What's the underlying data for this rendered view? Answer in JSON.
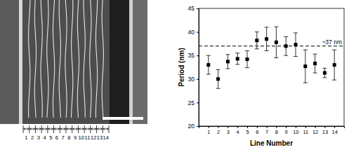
{
  "chart_data": {
    "type": "scatter",
    "x_label": "Line Number",
    "y_label": "Period (nm)",
    "x": [
      1,
      2,
      3,
      4,
      5,
      6,
      7,
      8,
      9,
      10,
      11,
      12,
      13,
      14
    ],
    "values": [
      33.0,
      30.0,
      33.7,
      34.3,
      34.2,
      38.2,
      38.5,
      37.8,
      37.0,
      37.3,
      32.7,
      33.3,
      31.3,
      33.0
    ],
    "errors": [
      2.0,
      2.0,
      1.5,
      1.2,
      1.8,
      1.8,
      2.5,
      3.3,
      2.0,
      2.5,
      3.5,
      2.0,
      1.0,
      3.2
    ],
    "color": "#000000",
    "marker": "square",
    "xlim": [
      0,
      15
    ],
    "xticks": [
      1,
      2,
      3,
      4,
      5,
      6,
      7,
      8,
      9,
      10,
      11,
      12,
      13,
      14
    ],
    "ylim": [
      20,
      45
    ],
    "yticks": [
      20,
      25,
      30,
      35,
      40,
      45
    ],
    "reference_line": {
      "y": 37,
      "label": "~37 nm",
      "line_style": "dashed"
    }
  },
  "micrograph": {
    "line_labels": [
      "1",
      "2",
      "3",
      "4",
      "5",
      "6",
      "7",
      "8",
      "9",
      "10",
      "11",
      "12",
      "13",
      "14"
    ]
  }
}
